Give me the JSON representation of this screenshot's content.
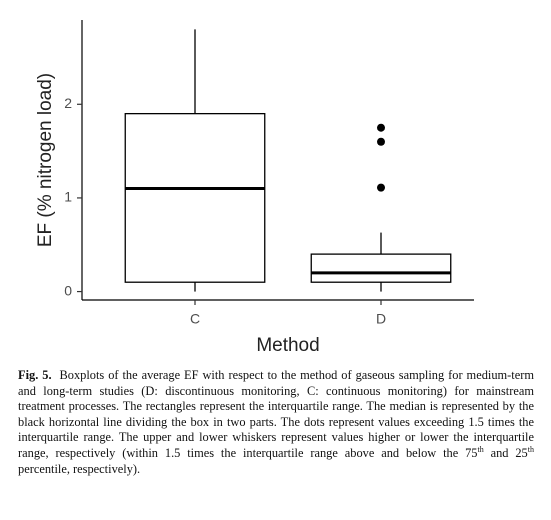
{
  "chart_data": {
    "type": "box",
    "ylabel": "EF (% nitrogen load)",
    "xlabel": "Method",
    "categories": [
      "C",
      "D"
    ],
    "boxes": [
      {
        "whisker_low": 0,
        "q1": 0.1,
        "median": 1.1,
        "q3": 1.9,
        "whisker_high": 2.8,
        "outliers": []
      },
      {
        "whisker_low": 0,
        "q1": 0.1,
        "median": 0.2,
        "q3": 0.4,
        "whisker_high": 0.63,
        "outliers": [
          1.75,
          1.6,
          1.11
        ]
      }
    ],
    "ylim": [
      -0.09,
      2.9
    ],
    "yticks": [
      0,
      1,
      2
    ],
    "color": "#000000",
    "grid": false
  },
  "caption": {
    "label": "Fig. 5.",
    "text1": "Boxplots of the average EF with respect to the method of gaseous sampling for medium-term and long-term studies (D: discontinuous monitoring, C: continuous monitoring) for mainstream treatment processes. The rectangles represent the interquartile range. The median is represented by the black horizontal line dividing the box in two parts. The dots represent values exceeding 1.5 times the interquartile range. The upper and lower whiskers represent values higher or lower the interquartile range, respectively (within 1.5 times the interquartile range above and below the 75",
    "sup1": "th",
    "text2": " and 25",
    "sup2": "th",
    "text3": " percentile, respectively)."
  }
}
